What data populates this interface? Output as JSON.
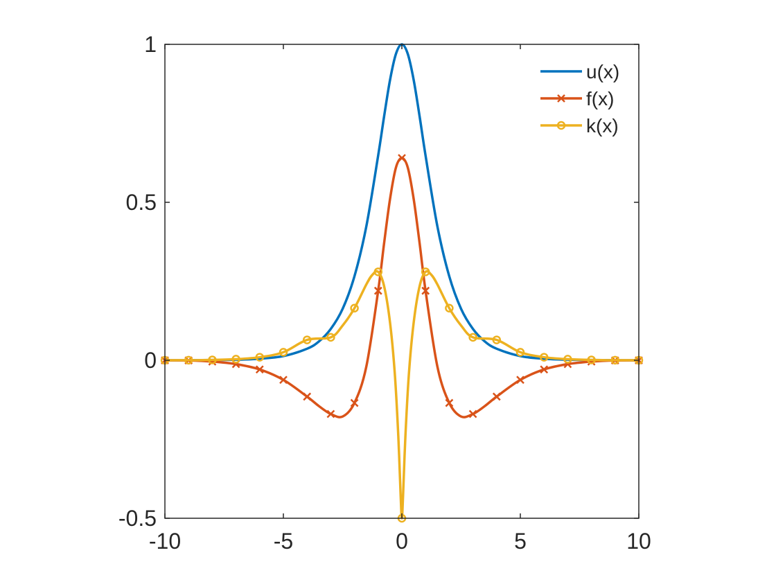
{
  "chart_data": {
    "type": "line",
    "title": "",
    "xlabel": "",
    "ylabel": "",
    "xlim": [
      -10,
      10
    ],
    "ylim": [
      -0.5,
      1
    ],
    "x_ticks": [
      -10,
      -5,
      0,
      5,
      10
    ],
    "y_ticks": [
      -0.5,
      0,
      0.5,
      1
    ],
    "x_tick_labels": [
      "-10",
      "-5",
      "0",
      "5",
      "10"
    ],
    "y_tick_labels": [
      "-0.5",
      "0",
      "0.5",
      "1"
    ],
    "grid": false,
    "box": true,
    "legend_position": "top-right",
    "series": [
      {
        "name": "u(x)",
        "color": "#0072BD",
        "marker": "none",
        "x": [
          -10,
          -9,
          -8,
          -7,
          -6,
          -5,
          -4,
          -3.5,
          -3,
          -2.5,
          -2,
          -1.5,
          -1,
          -0.75,
          -0.5,
          -0.25,
          0,
          0.25,
          0.5,
          0.75,
          1,
          1.5,
          2,
          2.5,
          3,
          3.5,
          4,
          5,
          6,
          7,
          8,
          9,
          10
        ],
        "y": [
          0.0001,
          0.0002,
          0.0007,
          0.0018,
          0.005,
          0.0133,
          0.0366,
          0.0596,
          0.0993,
          0.1627,
          0.266,
          0.4237,
          0.648,
          0.7715,
          0.8868,
          0.9696,
          1,
          0.9696,
          0.8868,
          0.7715,
          0.648,
          0.4237,
          0.266,
          0.1627,
          0.0993,
          0.0596,
          0.0366,
          0.0133,
          0.005,
          0.0018,
          0.0007,
          0.0002,
          0.0001
        ]
      },
      {
        "name": "f(x)",
        "color": "#D95319",
        "marker": "x",
        "x": [
          -10,
          -9,
          -8,
          -7,
          -6,
          -5,
          -4,
          -3.5,
          -3,
          -2.5,
          -2,
          -1.5,
          -1,
          -0.75,
          -0.5,
          -0.25,
          0,
          0.25,
          0.5,
          0.75,
          1,
          1.5,
          2,
          2.5,
          3,
          3.5,
          4,
          5,
          6,
          7,
          8,
          9,
          10
        ],
        "y": [
          -0.0002,
          -0.0005,
          -0.004,
          -0.012,
          -0.029,
          -0.062,
          -0.115,
          -0.145,
          -0.17,
          -0.178,
          -0.135,
          -0.02,
          0.22,
          0.37,
          0.51,
          0.61,
          0.64,
          0.61,
          0.51,
          0.37,
          0.22,
          -0.02,
          -0.135,
          -0.178,
          -0.17,
          -0.145,
          -0.115,
          -0.062,
          -0.029,
          -0.012,
          -0.004,
          -0.0005,
          -0.0002
        ],
        "marker_x": [
          -10,
          -9,
          -8,
          -7,
          -6,
          -5,
          -4,
          -3,
          -2,
          -1,
          0,
          1,
          2,
          3,
          4,
          5,
          6,
          7,
          8,
          9,
          10
        ],
        "marker_y": [
          -0.0002,
          -0.0005,
          -0.004,
          -0.012,
          -0.029,
          -0.062,
          -0.115,
          -0.17,
          -0.135,
          0.22,
          0.64,
          0.22,
          -0.135,
          -0.17,
          -0.115,
          -0.062,
          -0.029,
          -0.012,
          -0.004,
          -0.0005,
          -0.0002
        ]
      },
      {
        "name": "k(x)",
        "color": "#EDB120",
        "marker": "o",
        "x": [
          -10,
          -9,
          -8,
          -7,
          -6,
          -5,
          -4,
          -3,
          -2.5,
          -2,
          -1.5,
          -1.25,
          -1,
          -0.75,
          -0.5,
          -0.3,
          -0.15,
          -0.05,
          0,
          0.05,
          0.15,
          0.3,
          0.5,
          0.75,
          1,
          1.25,
          1.5,
          2,
          2.5,
          3,
          4,
          5,
          6,
          7,
          8,
          9,
          10
        ],
        "y": [
          0.0001,
          0.0003,
          0.0012,
          0.0035,
          0.0097,
          0.0255,
          0.0645,
          0.0727,
          0.11,
          0.165,
          0.24,
          0.27,
          0.28,
          0.235,
          0.12,
          -0.04,
          -0.24,
          -0.43,
          -0.5,
          -0.43,
          -0.24,
          -0.04,
          0.12,
          0.235,
          0.28,
          0.27,
          0.24,
          0.165,
          0.11,
          0.0727,
          0.0645,
          0.0255,
          0.0097,
          0.0035,
          0.0012,
          0.0003,
          0.0001
        ],
        "marker_x": [
          -10,
          -9,
          -8,
          -7,
          -6,
          -5,
          -4,
          -3,
          -2,
          -1,
          0,
          1,
          2,
          3,
          4,
          5,
          6,
          7,
          8,
          9,
          10
        ],
        "marker_y": [
          0.0001,
          0.0003,
          0.0012,
          0.0035,
          0.0097,
          0.0255,
          0.0645,
          0.0727,
          0.165,
          0.28,
          -0.5,
          0.28,
          0.165,
          0.0727,
          0.0645,
          0.0255,
          0.0097,
          0.0035,
          0.0012,
          0.0003,
          0.0001
        ]
      }
    ]
  }
}
